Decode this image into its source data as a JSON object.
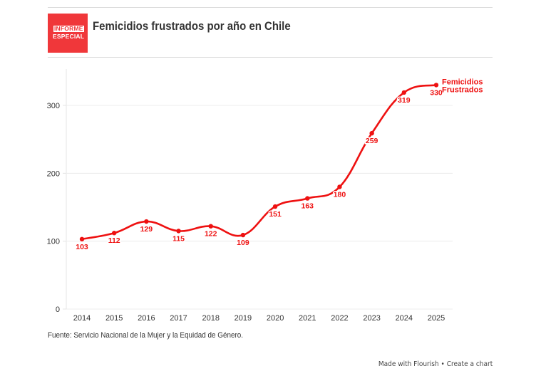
{
  "header": {
    "logo_line1": "INFORME",
    "logo_line2": "ESPECIAL",
    "title": "Femicidios frustrados por año en Chile"
  },
  "colors": {
    "series": "#ee1111",
    "logo": "#f0373a",
    "grid": "#ececec",
    "axis_text": "#333333"
  },
  "chart_data": {
    "type": "line",
    "title": "Femicidios frustrados por año en Chile",
    "xlabel": "",
    "ylabel": "",
    "x": [
      "2014",
      "2015",
      "2016",
      "2017",
      "2018",
      "2019",
      "2020",
      "2021",
      "2022",
      "2023",
      "2024",
      "2025"
    ],
    "series": [
      {
        "name": "Femicidios Frustrados",
        "values": [
          103,
          112,
          129,
          115,
          122,
          109,
          151,
          163,
          180,
          259,
          319,
          330
        ]
      }
    ],
    "ylim": [
      0,
      355
    ],
    "yticks": [
      0,
      100,
      200,
      300
    ],
    "grid": true,
    "legend": "line-end label (right)",
    "data_labels": true,
    "curve": "smooth"
  },
  "footer": {
    "source": "Fuente: Servicio Nacional de la Mujer y la Equidad de Género.",
    "made_with": "Made with Flourish",
    "separator": "•",
    "create": "Create a chart"
  }
}
